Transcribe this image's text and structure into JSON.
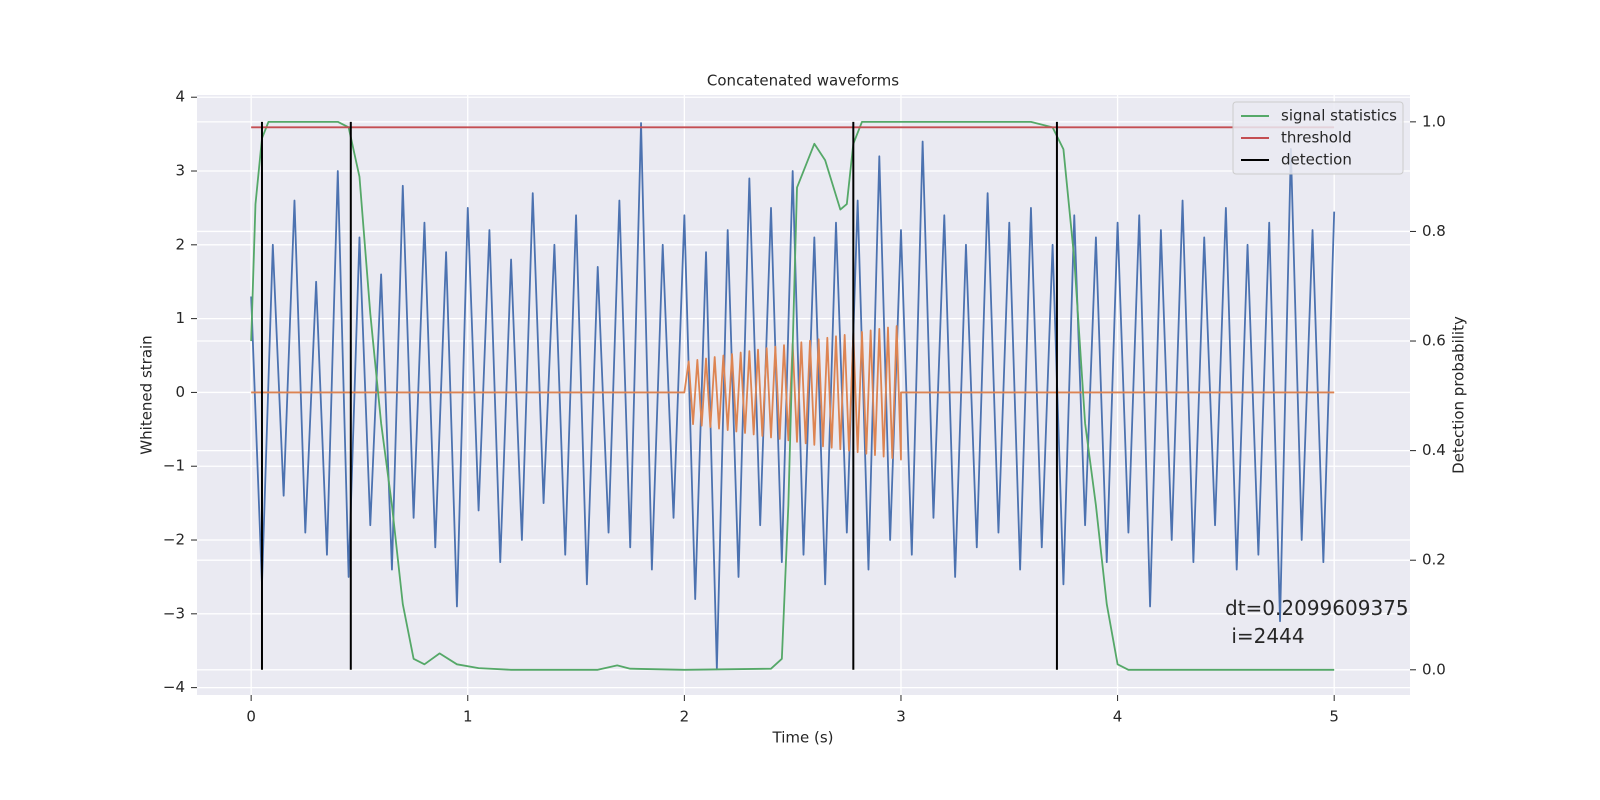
{
  "chart_data": {
    "type": "line",
    "title": "Concatenated waveforms",
    "xlabel": "Time (s)",
    "ylabel": "Whitened strain",
    "y2label": "Detection probability",
    "xlim": [
      -0.25,
      5.35
    ],
    "ylim": [
      -4.1,
      4.03
    ],
    "y2lim": [
      -0.046,
      1.049
    ],
    "xticks": [
      0,
      1,
      2,
      3,
      4,
      5
    ],
    "yticks": [
      {
        "value": -4,
        "label": "−4"
      },
      {
        "value": -3,
        "label": "−3"
      },
      {
        "value": -2,
        "label": "−2"
      },
      {
        "value": -1,
        "label": "−1"
      },
      0,
      1,
      2,
      3,
      4
    ],
    "y2ticks": [
      {
        "value": 0,
        "label": "0.0"
      },
      0.2,
      0.4,
      0.6,
      0.8,
      {
        "value": 1,
        "label": "1.0"
      }
    ],
    "grid": true,
    "legend": "upper right",
    "series": [
      {
        "color": "#4c72b0",
        "x": [
          0,
          0.05,
          0.1,
          0.15,
          0.2,
          0.25,
          0.3,
          0.35,
          0.4,
          0.45,
          0.5,
          0.55,
          0.6,
          0.65,
          0.7,
          0.75,
          0.8,
          0.85,
          0.9,
          0.95,
          1,
          1.05,
          1.1,
          1.15,
          1.2,
          1.25,
          1.3,
          1.35,
          1.4,
          1.45,
          1.5,
          1.55,
          1.6,
          1.65,
          1.7,
          1.75,
          1.8,
          1.85,
          1.9,
          1.95,
          2,
          2.05,
          2.1,
          2.15,
          2.2,
          2.25,
          2.3,
          2.35,
          2.4,
          2.45,
          2.5,
          2.55,
          2.6,
          2.65,
          2.7,
          2.75,
          2.8,
          2.85,
          2.9,
          2.95,
          3,
          3.05,
          3.1,
          3.15,
          3.2,
          3.25,
          3.3,
          3.35,
          3.4,
          3.45,
          3.5,
          3.55,
          3.6,
          3.65,
          3.7,
          3.75,
          3.8,
          3.85,
          3.9,
          3.95,
          4,
          4.05,
          4.1,
          4.15,
          4.2,
          4.25,
          4.3,
          4.35,
          4.4,
          4.45,
          4.5,
          4.55,
          4.6,
          4.65,
          4.7,
          4.75,
          4.8,
          4.85,
          4.9,
          4.95,
          5
        ],
        "values": [
          1.3,
          -2.6,
          2.0,
          -1.4,
          2.6,
          -1.9,
          1.5,
          -2.2,
          3.0,
          -2.5,
          2.1,
          -1.8,
          1.6,
          -2.4,
          2.8,
          -1.7,
          2.3,
          -2.1,
          1.9,
          -2.9,
          2.5,
          -1.6,
          2.2,
          -2.3,
          1.8,
          -2.0,
          2.7,
          -1.5,
          2.0,
          -2.2,
          2.4,
          -2.6,
          1.7,
          -1.9,
          2.6,
          -2.1,
          3.65,
          -2.4,
          2.0,
          -1.7,
          2.4,
          -2.8,
          1.9,
          -3.75,
          2.2,
          -2.5,
          2.9,
          -1.8,
          2.5,
          -2.3,
          3.0,
          -2.2,
          2.1,
          -2.6,
          2.3,
          -1.9,
          2.6,
          -2.4,
          3.2,
          -2.0,
          2.2,
          -2.2,
          3.4,
          -1.7,
          2.4,
          -2.5,
          2.0,
          -2.1,
          2.7,
          -1.9,
          2.3,
          -2.4,
          2.5,
          -2.1,
          2.0,
          -2.6,
          2.4,
          -1.8,
          2.1,
          -2.3,
          2.3,
          -1.9,
          2.4,
          -2.9,
          2.2,
          -2.0,
          2.6,
          -2.3,
          2.1,
          -1.8,
          2.5,
          -2.4,
          2.0,
          -2.2,
          2.3,
          -3.1,
          3.3,
          -2.0,
          2.2,
          -2.3,
          2.45
        ]
      },
      {
        "color": "#dd8452",
        "x": [
          0,
          2,
          2.02,
          2.04,
          2.06,
          2.08,
          2.1,
          2.12,
          2.14,
          2.16,
          2.18,
          2.2,
          2.22,
          2.24,
          2.26,
          2.28,
          2.3,
          2.32,
          2.34,
          2.36,
          2.38,
          2.4,
          2.42,
          2.44,
          2.46,
          2.48,
          2.5,
          2.52,
          2.54,
          2.56,
          2.58,
          2.6,
          2.62,
          2.64,
          2.66,
          2.68,
          2.7,
          2.72,
          2.74,
          2.76,
          2.78,
          2.8,
          2.82,
          2.84,
          2.86,
          2.88,
          2.9,
          2.92,
          2.94,
          2.96,
          2.98,
          3,
          3,
          5
        ],
        "values": [
          0,
          0,
          0.42,
          -0.43,
          0.44,
          -0.45,
          0.46,
          -0.47,
          0.48,
          -0.49,
          0.5,
          -0.51,
          0.52,
          -0.53,
          0.54,
          -0.55,
          0.56,
          -0.57,
          0.58,
          -0.59,
          0.6,
          -0.61,
          0.62,
          -0.63,
          0.64,
          -0.65,
          0.66,
          -0.67,
          0.68,
          -0.69,
          0.7,
          -0.71,
          0.72,
          -0.73,
          0.74,
          -0.75,
          0.76,
          -0.77,
          0.78,
          -0.79,
          0.8,
          -0.81,
          0.82,
          -0.83,
          0.84,
          -0.85,
          0.86,
          -0.87,
          0.88,
          -0.89,
          0.9,
          -0.91,
          0,
          0
        ]
      },
      {
        "name": "signal statistics",
        "color": "#55a868",
        "axis": "y2",
        "x": [
          0,
          0.02,
          0.05,
          0.08,
          0.4,
          0.45,
          0.5,
          0.55,
          0.6,
          0.65,
          0.7,
          0.75,
          0.8,
          0.87,
          0.95,
          1.05,
          1.2,
          1.6,
          1.69,
          1.75,
          2,
          2.4,
          2.45,
          2.48,
          2.52,
          2.6,
          2.65,
          2.72,
          2.75,
          2.78,
          2.82,
          3,
          3.6,
          3.7,
          3.75,
          3.8,
          3.85,
          3.9,
          3.95,
          4,
          4.05,
          5
        ],
        "values": [
          0.6,
          0.85,
          0.97,
          1.0,
          1.0,
          0.99,
          0.9,
          0.65,
          0.45,
          0.3,
          0.12,
          0.02,
          0.01,
          0.03,
          0.01,
          0.003,
          0,
          0,
          0.008,
          0.002,
          0,
          0.002,
          0.02,
          0.3,
          0.88,
          0.96,
          0.93,
          0.84,
          0.85,
          0.96,
          1.0,
          1.0,
          1.0,
          0.99,
          0.95,
          0.75,
          0.45,
          0.3,
          0.12,
          0.01,
          0,
          0
        ]
      },
      {
        "name": "threshold",
        "color": "#c44e52",
        "axis": "y2",
        "x": [
          0,
          5
        ],
        "values": [
          0.99,
          0.99
        ]
      }
    ],
    "vlines": {
      "name": "detection",
      "color": "#000000",
      "axis": "y2",
      "x": [
        0.05,
        0.46,
        2.78,
        3.72
      ],
      "ymin": 0,
      "ymax": 1
    },
    "annotation": "dt=0.2099609375\n i=2444"
  }
}
